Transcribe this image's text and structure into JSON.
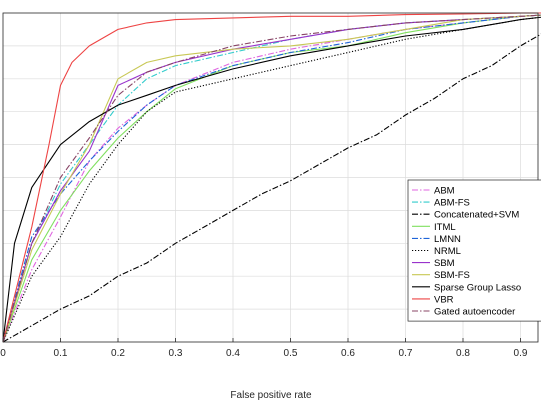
{
  "chart_data": {
    "type": "line",
    "title": "",
    "xlabel": "False positive rate",
    "ylabel": "",
    "xlim": [
      0,
      1
    ],
    "ylim": [
      0,
      1
    ],
    "xticks": [
      "0",
      "0.1",
      "0.2",
      "0.3",
      "0.4",
      "0.5",
      "0.6",
      "0.7",
      "0.8",
      "0.9"
    ],
    "grid": true,
    "legend_position": "lower-right",
    "series": [
      {
        "name": "ABM",
        "color": "#e066e0",
        "dash": "dashdot",
        "x": [
          0,
          0.05,
          0.1,
          0.15,
          0.2,
          0.25,
          0.3,
          0.4,
          0.5,
          0.6,
          0.7,
          0.8,
          0.9,
          1.0
        ],
        "y": [
          0,
          0.22,
          0.38,
          0.55,
          0.65,
          0.72,
          0.78,
          0.85,
          0.89,
          0.92,
          0.95,
          0.97,
          0.99,
          1.0
        ]
      },
      {
        "name": "ABM-FS",
        "color": "#33cccc",
        "dash": "dashdot",
        "x": [
          0,
          0.05,
          0.1,
          0.15,
          0.2,
          0.25,
          0.3,
          0.4,
          0.5,
          0.6,
          0.7,
          0.8,
          0.9,
          1.0
        ],
        "y": [
          0,
          0.3,
          0.48,
          0.6,
          0.72,
          0.8,
          0.84,
          0.88,
          0.92,
          0.95,
          0.97,
          0.98,
          0.99,
          1.0
        ]
      },
      {
        "name": "Concatenated+SVM",
        "color": "#000000",
        "dash": "dashdot",
        "x": [
          0,
          0.05,
          0.1,
          0.15,
          0.2,
          0.25,
          0.3,
          0.35,
          0.4,
          0.45,
          0.5,
          0.55,
          0.6,
          0.65,
          0.7,
          0.75,
          0.8,
          0.85,
          0.9,
          0.95,
          1.0
        ],
        "y": [
          0,
          0.05,
          0.1,
          0.14,
          0.2,
          0.24,
          0.3,
          0.35,
          0.4,
          0.45,
          0.49,
          0.54,
          0.59,
          0.63,
          0.69,
          0.74,
          0.8,
          0.84,
          0.9,
          0.95,
          1.0
        ]
      },
      {
        "name": "ITML",
        "color": "#80e060",
        "dash": "solid",
        "x": [
          0,
          0.05,
          0.1,
          0.15,
          0.2,
          0.25,
          0.3,
          0.4,
          0.5,
          0.6,
          0.7,
          0.8,
          0.9,
          1.0
        ],
        "y": [
          0,
          0.25,
          0.4,
          0.52,
          0.62,
          0.7,
          0.77,
          0.84,
          0.88,
          0.9,
          0.94,
          0.97,
          0.99,
          1.0
        ]
      },
      {
        "name": "LMNN",
        "color": "#1f64d8",
        "dash": "dashdot",
        "x": [
          0,
          0.05,
          0.1,
          0.15,
          0.2,
          0.25,
          0.3,
          0.4,
          0.5,
          0.6,
          0.7,
          0.8,
          0.9,
          1.0
        ],
        "y": [
          0,
          0.32,
          0.45,
          0.55,
          0.64,
          0.72,
          0.78,
          0.84,
          0.88,
          0.91,
          0.95,
          0.97,
          0.99,
          1.0
        ]
      },
      {
        "name": "NRML",
        "color": "#000000",
        "dash": "dotted",
        "x": [
          0,
          0.05,
          0.1,
          0.15,
          0.2,
          0.25,
          0.3,
          0.4,
          0.5,
          0.6,
          0.7,
          0.8,
          0.9,
          1.0
        ],
        "y": [
          0,
          0.2,
          0.32,
          0.48,
          0.6,
          0.7,
          0.76,
          0.8,
          0.84,
          0.88,
          0.92,
          0.95,
          0.98,
          1.0
        ]
      },
      {
        "name": "SBM",
        "color": "#9933cc",
        "dash": "solid",
        "x": [
          0,
          0.05,
          0.1,
          0.15,
          0.2,
          0.25,
          0.3,
          0.4,
          0.5,
          0.6,
          0.7,
          0.8,
          0.9,
          1.0
        ],
        "y": [
          0,
          0.3,
          0.46,
          0.58,
          0.78,
          0.82,
          0.85,
          0.89,
          0.92,
          0.95,
          0.97,
          0.98,
          0.99,
          1.0
        ]
      },
      {
        "name": "SBM-FS",
        "color": "#c8c855",
        "dash": "solid",
        "x": [
          0,
          0.05,
          0.1,
          0.15,
          0.2,
          0.25,
          0.3,
          0.4,
          0.5,
          0.6,
          0.7,
          0.8,
          0.9,
          1.0
        ],
        "y": [
          0,
          0.28,
          0.45,
          0.6,
          0.8,
          0.85,
          0.87,
          0.89,
          0.9,
          0.92,
          0.95,
          0.98,
          0.99,
          1.0
        ]
      },
      {
        "name": "Sparse Group Lasso",
        "color": "#000000",
        "dash": "solid",
        "x": [
          0,
          0.02,
          0.05,
          0.1,
          0.15,
          0.2,
          0.25,
          0.3,
          0.4,
          0.5,
          0.6,
          0.7,
          0.8,
          0.9,
          1.0
        ],
        "y": [
          0,
          0.3,
          0.47,
          0.6,
          0.67,
          0.72,
          0.75,
          0.78,
          0.83,
          0.87,
          0.9,
          0.93,
          0.95,
          0.98,
          1.0
        ]
      },
      {
        "name": "VBR",
        "color": "#ee4444",
        "dash": "solid",
        "x": [
          0,
          0.05,
          0.08,
          0.1,
          0.12,
          0.15,
          0.2,
          0.25,
          0.3,
          0.4,
          0.5,
          0.6,
          0.7,
          0.8,
          0.9,
          1.0
        ],
        "y": [
          0,
          0.35,
          0.6,
          0.78,
          0.85,
          0.9,
          0.95,
          0.97,
          0.98,
          0.985,
          0.99,
          0.99,
          0.995,
          0.997,
          1.0,
          1.0
        ]
      },
      {
        "name": "Gated autoencoder",
        "color": "#884466",
        "dash": "dashdot",
        "x": [
          0,
          0.05,
          0.1,
          0.15,
          0.2,
          0.25,
          0.3,
          0.4,
          0.5,
          0.6,
          0.7,
          0.8,
          0.9,
          1.0
        ],
        "y": [
          0,
          0.3,
          0.5,
          0.62,
          0.75,
          0.82,
          0.85,
          0.9,
          0.93,
          0.95,
          0.97,
          0.98,
          0.99,
          1.0
        ]
      }
    ]
  }
}
